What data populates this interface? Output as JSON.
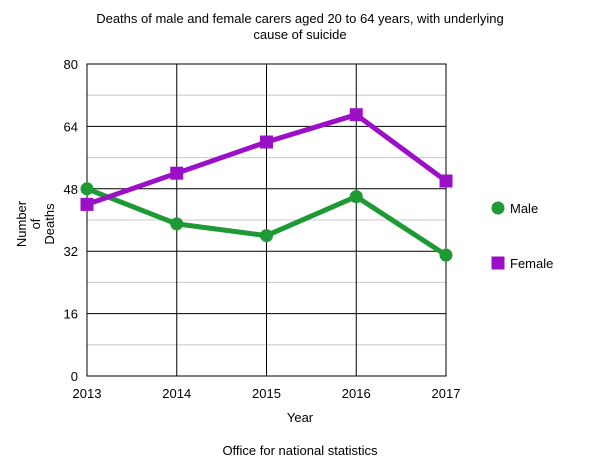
{
  "chart_data": {
    "type": "line",
    "title_lines": [
      "Deaths of male and female carers aged 20 to 64 years, with underlying",
      "cause of suicide"
    ],
    "xlabel": "Year",
    "ylabel_lines": [
      "Number",
      "of",
      "Deaths"
    ],
    "footer": "Office for national statistics",
    "x": [
      "2013",
      "2014",
      "2015",
      "2016",
      "2017"
    ],
    "ylim": [
      0,
      80
    ],
    "yticks": [
      0,
      16,
      32,
      48,
      64,
      80
    ],
    "yticks_labels": [
      "0",
      "16",
      "32",
      "48",
      "64",
      "80"
    ],
    "minor_gridlines": true,
    "legend_position": "right",
    "series": [
      {
        "name": "Male",
        "values": [
          48,
          39,
          36,
          46,
          31
        ],
        "color": "#1e9a34",
        "marker": "circle"
      },
      {
        "name": "Female",
        "values": [
          44,
          52,
          60,
          67,
          50
        ],
        "color": "#9b0fc6",
        "marker": "square"
      }
    ]
  }
}
